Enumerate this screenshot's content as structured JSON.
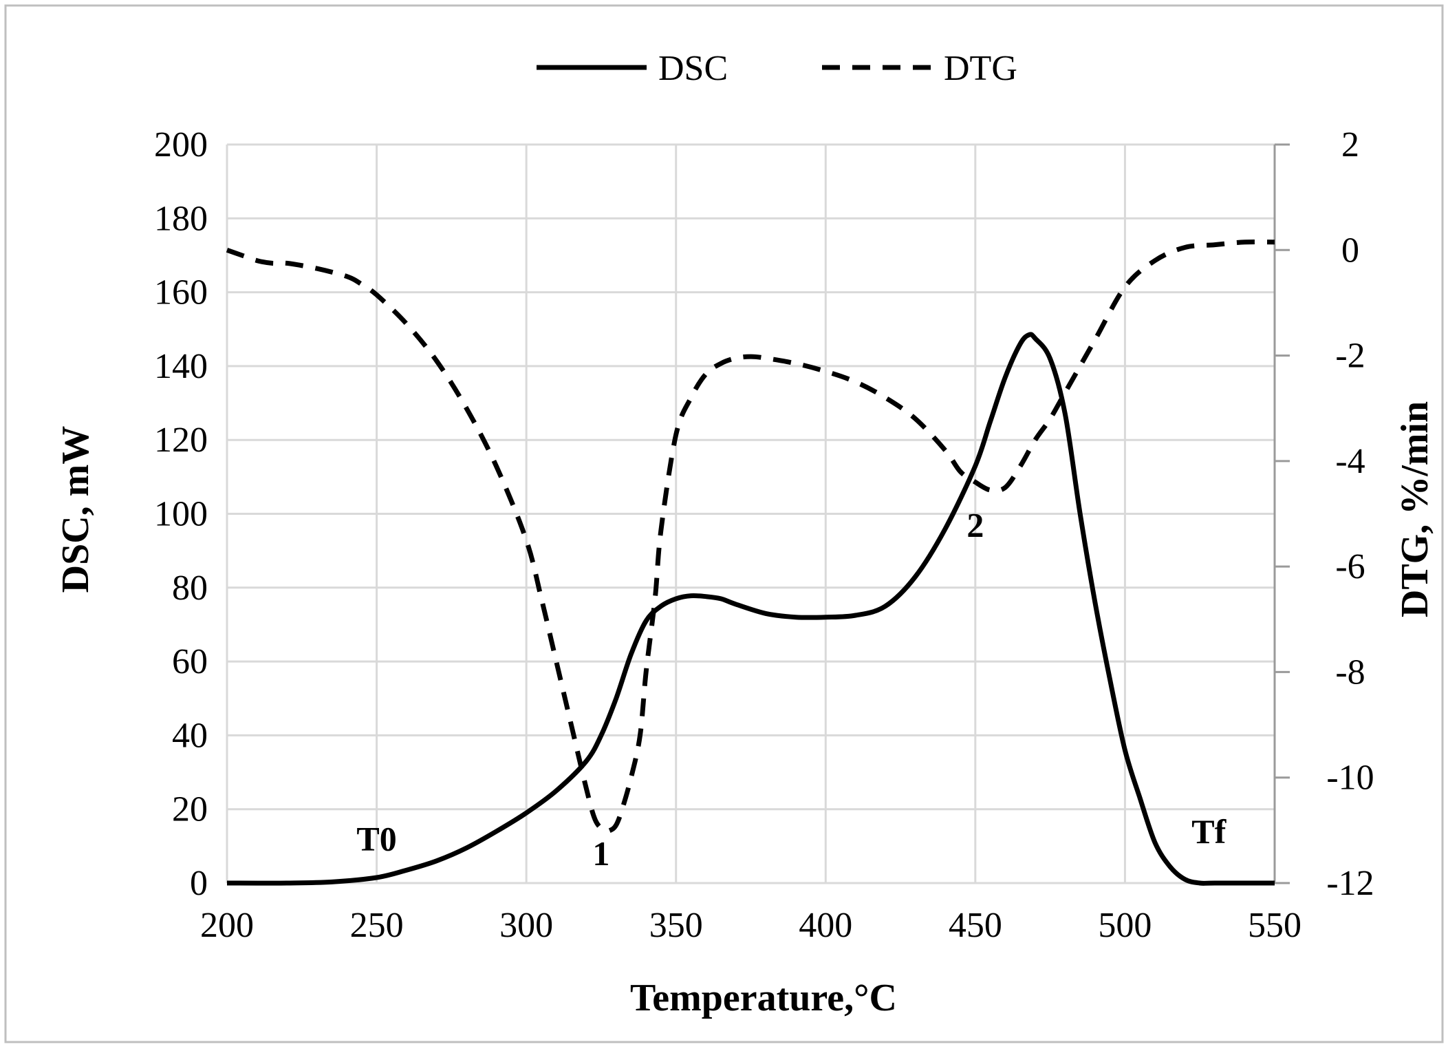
{
  "chart_data": {
    "type": "line",
    "title": "",
    "xlabel": "Temperature,°C",
    "ylabel": "DSC, mW",
    "y2label": "DTG, %/min",
    "xlim": [
      200,
      550
    ],
    "ylim": [
      0,
      200
    ],
    "y2lim": [
      -12,
      2
    ],
    "x_ticks": [
      200,
      250,
      300,
      350,
      400,
      450,
      500,
      550
    ],
    "y_ticks": [
      0,
      20,
      40,
      60,
      80,
      100,
      120,
      140,
      160,
      180,
      200
    ],
    "y2_ticks": [
      -12,
      -10,
      -8,
      -6,
      -4,
      -2,
      0,
      2
    ],
    "grid": true,
    "legend_position": "top-center",
    "series": [
      {
        "name": "DSC",
        "axis": "left",
        "style": "solid",
        "x": [
          200,
          220,
          235,
          250,
          260,
          270,
          280,
          290,
          300,
          310,
          320,
          325,
          330,
          335,
          340,
          345,
          350,
          355,
          360,
          365,
          370,
          380,
          390,
          400,
          410,
          420,
          430,
          440,
          450,
          455,
          460,
          465,
          468,
          470,
          475,
          480,
          485,
          490,
          495,
          500,
          505,
          510,
          515,
          520,
          525,
          530,
          550
        ],
        "values": [
          0,
          0,
          0.3,
          1.5,
          3.5,
          6,
          9.5,
          14,
          19,
          25,
          33,
          40,
          50,
          62,
          71,
          75,
          77,
          77.8,
          77.6,
          77,
          75.5,
          73,
          72,
          72,
          72.5,
          75,
          83,
          96,
          113,
          125,
          137,
          146,
          148.5,
          147.5,
          142,
          127,
          100,
          76,
          55,
          36,
          23,
          11,
          4.5,
          1,
          0,
          0,
          0
        ]
      },
      {
        "name": "DTG",
        "axis": "right",
        "style": "dashed",
        "x": [
          200,
          205,
          210,
          215,
          220,
          230,
          240,
          245,
          250,
          260,
          270,
          280,
          290,
          300,
          305,
          310,
          315,
          320,
          323,
          326,
          328,
          330,
          332,
          335,
          338,
          340,
          343,
          345,
          350,
          355,
          360,
          365,
          370,
          375,
          380,
          390,
          400,
          410,
          420,
          430,
          440,
          445,
          450,
          455,
          460,
          465,
          470,
          475,
          480,
          490,
          500,
          510,
          520,
          530,
          540,
          550
        ],
        "values": [
          0,
          -0.1,
          -0.2,
          -0.25,
          -0.25,
          -0.35,
          -0.5,
          -0.65,
          -0.85,
          -1.4,
          -2.1,
          -3,
          -4.1,
          -5.5,
          -6.6,
          -7.8,
          -9,
          -10.2,
          -10.8,
          -11,
          -11,
          -10.9,
          -10.6,
          -10,
          -9.2,
          -8,
          -6.6,
          -5.3,
          -3.5,
          -2.8,
          -2.35,
          -2.15,
          -2.05,
          -2.02,
          -2.05,
          -2.15,
          -2.3,
          -2.5,
          -2.8,
          -3.2,
          -3.8,
          -4.2,
          -4.4,
          -4.55,
          -4.5,
          -4.1,
          -3.6,
          -3.2,
          -2.7,
          -1.7,
          -0.7,
          -0.2,
          0.05,
          0.1,
          0.15,
          0.15
        ]
      }
    ],
    "annotations": [
      {
        "text": "T0",
        "x": 250,
        "y": 12
      },
      {
        "text": "1",
        "x": 325,
        "y": 8
      },
      {
        "text": "2",
        "x": 450,
        "y": 97
      },
      {
        "text": "Tf",
        "x": 528,
        "y": 14
      }
    ]
  },
  "legend": {
    "dsc_label": "DSC",
    "dtg_label": "DTG"
  }
}
